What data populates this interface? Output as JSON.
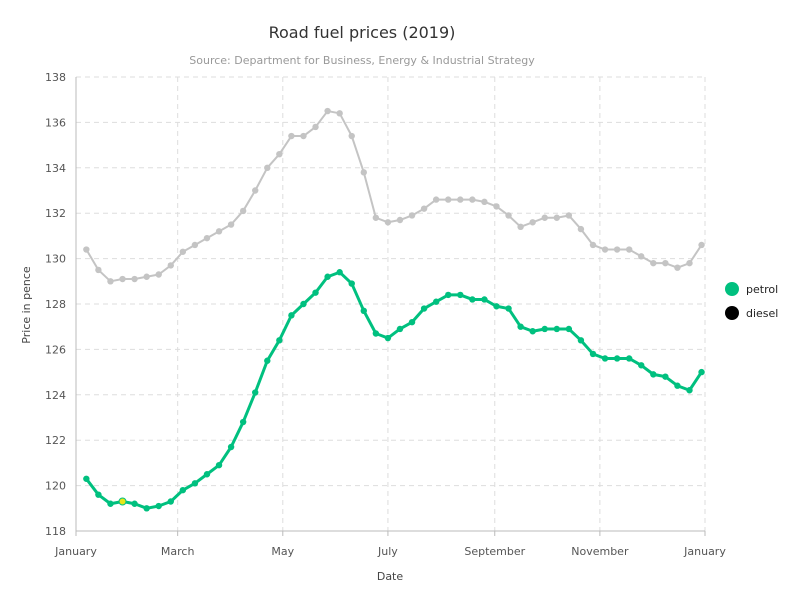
{
  "chart_data": {
    "type": "line",
    "title": "Road fuel prices (2019)",
    "subtitle": "Source: Department for Business, Energy & Industrial Strategy",
    "xlabel": "Date",
    "ylabel": "Price in pence",
    "ylim": [
      118,
      138
    ],
    "y_ticks": [
      "118",
      "120",
      "122",
      "124",
      "126",
      "128",
      "130",
      "132",
      "134",
      "136",
      "138"
    ],
    "x_ticks": [
      "January",
      "March",
      "May",
      "July",
      "September",
      "November",
      "January"
    ],
    "x_tick_dates": [
      "2019-01-01",
      "2019-03-01",
      "2019-05-01",
      "2019-07-01",
      "2019-09-01",
      "2019-11-01",
      "2020-01-01"
    ],
    "grid": true,
    "legend_position": "right",
    "x": [
      "2019-01-07",
      "2019-01-14",
      "2019-01-21",
      "2019-01-28",
      "2019-02-04",
      "2019-02-11",
      "2019-02-18",
      "2019-02-25",
      "2019-03-04",
      "2019-03-11",
      "2019-03-18",
      "2019-03-25",
      "2019-04-01",
      "2019-04-08",
      "2019-04-15",
      "2019-04-22",
      "2019-04-29",
      "2019-05-06",
      "2019-05-13",
      "2019-05-20",
      "2019-05-27",
      "2019-06-03",
      "2019-06-10",
      "2019-06-17",
      "2019-06-24",
      "2019-07-01",
      "2019-07-08",
      "2019-07-15",
      "2019-07-22",
      "2019-07-29",
      "2019-08-05",
      "2019-08-12",
      "2019-08-19",
      "2019-08-26",
      "2019-09-02",
      "2019-09-09",
      "2019-09-16",
      "2019-09-23",
      "2019-09-30",
      "2019-10-07",
      "2019-10-14",
      "2019-10-21",
      "2019-10-28",
      "2019-11-04",
      "2019-11-11",
      "2019-11-18",
      "2019-11-25",
      "2019-12-02",
      "2019-12-09",
      "2019-12-16",
      "2019-12-23",
      "2019-12-30"
    ],
    "series": [
      {
        "name": "petrol",
        "color": "#00c07f",
        "values": [
          120.3,
          119.6,
          119.2,
          119.3,
          119.2,
          119.0,
          119.1,
          119.3,
          119.8,
          120.1,
          120.5,
          120.9,
          121.7,
          122.8,
          124.1,
          125.5,
          126.4,
          127.5,
          128.0,
          128.5,
          129.2,
          129.4,
          128.9,
          127.7,
          126.7,
          126.5,
          126.9,
          127.2,
          127.8,
          128.1,
          128.4,
          128.4,
          128.2,
          128.2,
          127.9,
          127.8,
          127.0,
          126.8,
          126.9,
          126.9,
          126.9,
          126.4,
          125.8,
          125.6,
          125.6,
          125.6,
          125.3,
          124.9,
          124.8,
          124.4,
          124.2,
          125.0
        ],
        "highlight_index": 3,
        "highlight_color": "#e6e619"
      },
      {
        "name": "diesel",
        "color": "#000000",
        "display_color": "#c4c4c4",
        "values": [
          130.4,
          129.5,
          129.0,
          129.1,
          129.1,
          129.2,
          129.3,
          129.7,
          130.3,
          130.6,
          130.9,
          131.2,
          131.5,
          132.1,
          133.0,
          134.0,
          134.6,
          135.4,
          135.4,
          135.8,
          136.5,
          136.4,
          135.4,
          133.8,
          131.8,
          131.6,
          131.7,
          131.9,
          132.2,
          132.6,
          132.6,
          132.6,
          132.6,
          132.5,
          132.3,
          131.9,
          131.4,
          131.6,
          131.8,
          131.8,
          131.9,
          131.3,
          130.6,
          130.4,
          130.4,
          130.4,
          130.1,
          129.8,
          129.8,
          129.6,
          129.8,
          130.6
        ]
      }
    ]
  }
}
